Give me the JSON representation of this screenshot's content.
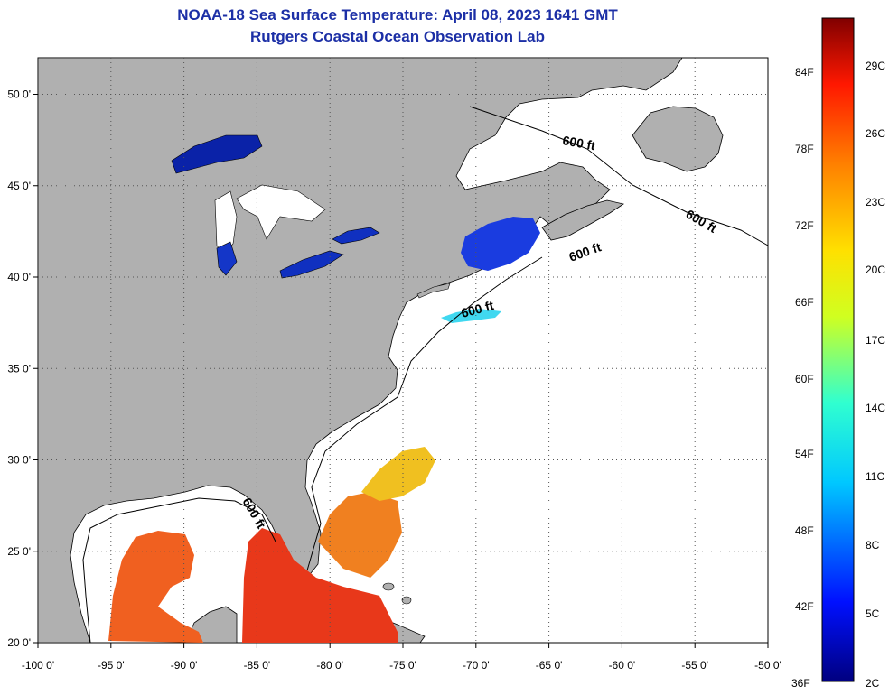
{
  "title": "NOAA-18 Sea Surface Temperature:  April 08, 2023 1641 GMT",
  "subtitle": "Rutgers Coastal Ocean Observation Lab",
  "map": {
    "lon_range": [
      -100,
      -50
    ],
    "lat_range": [
      20,
      52
    ],
    "x_ticks": [
      "-100 0'",
      "-95 0'",
      "-90 0'",
      "-85 0'",
      "-80 0'",
      "-75 0'",
      "-70 0'",
      "-65 0'",
      "-60 0'",
      "-55 0'",
      "-50 0'"
    ],
    "y_ticks": [
      "50 0'",
      "45 0'",
      "40 0'",
      "35 0'",
      "30 0'",
      "25 0'",
      "20 0'"
    ],
    "contour_label": "600 ft",
    "colors": {
      "land": "#b0b0b0",
      "ocean_nodata": "#ffffff",
      "cold": "#1030c0",
      "warm": "#e83a10"
    }
  },
  "colorbar": {
    "fahrenheit": [
      "84F",
      "78F",
      "72F",
      "66F",
      "60F",
      "54F",
      "48F",
      "42F",
      "36F"
    ],
    "celsius": [
      "29C",
      "26C",
      "23C",
      "20C",
      "17C",
      "14C",
      "11C",
      "8C",
      "5C",
      "2C"
    ]
  }
}
